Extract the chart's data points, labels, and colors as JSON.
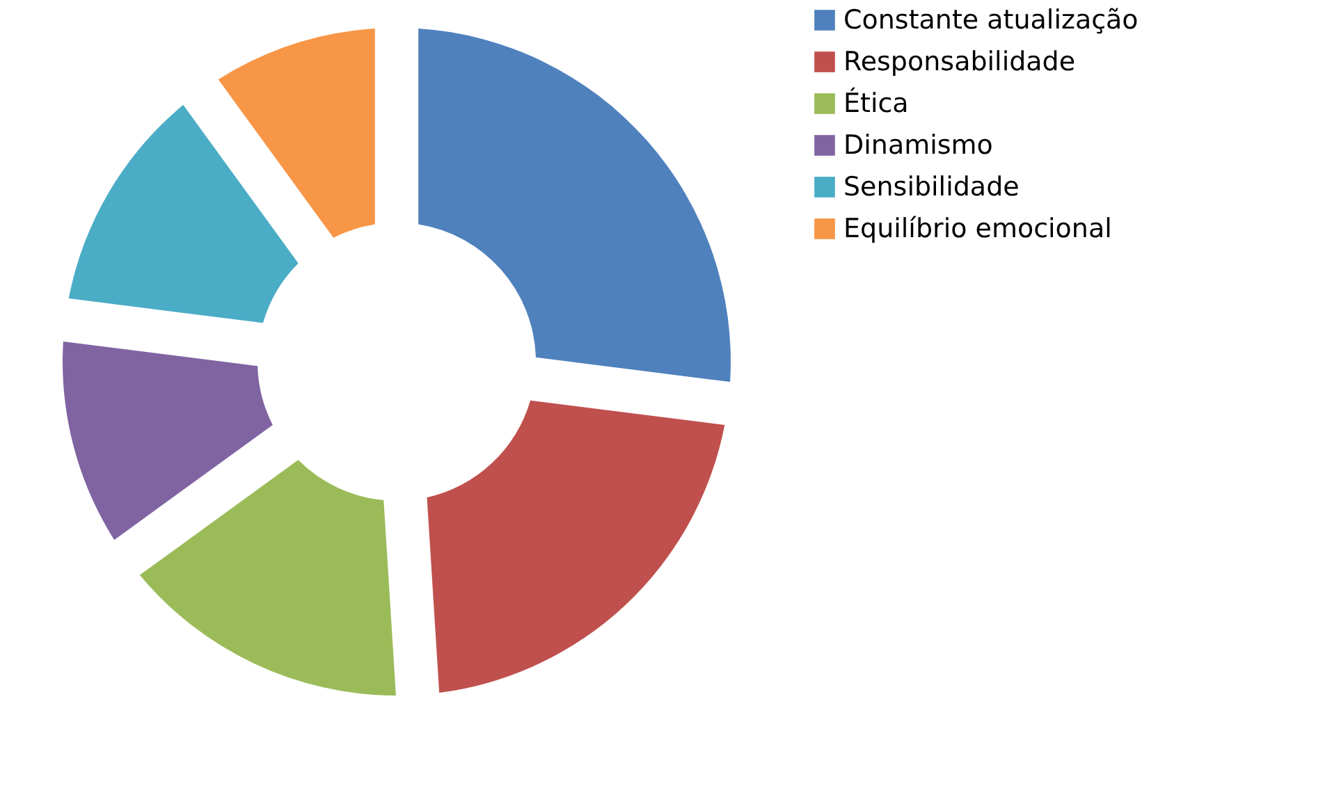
{
  "chart_data": {
    "type": "donut",
    "categories": [
      "Constante atualização",
      "Responsabilidade",
      "Ética",
      "Dinamismo",
      "Sensibilidade",
      "Equilíbrio emocional"
    ],
    "values": [
      27,
      22,
      16,
      12,
      13,
      10
    ],
    "colors": [
      "#4f81bd",
      "#c0504d",
      "#9bbb59",
      "#8064a2",
      "#4bacc6",
      "#f79646"
    ],
    "legend": "right"
  }
}
